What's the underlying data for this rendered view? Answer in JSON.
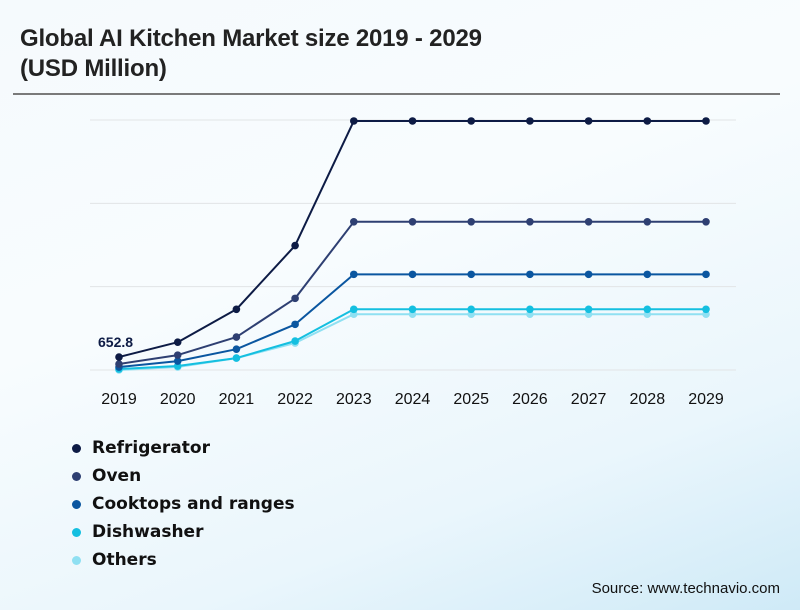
{
  "title_line1": "Global AI Kitchen Market size 2019 - 2029",
  "title_line2": "(USD Million)",
  "source": "Source: www.technavio.com",
  "chart_data": {
    "type": "line",
    "title": "Global AI Kitchen Market size 2019 - 2029 (USD Million)",
    "xlabel": "",
    "ylabel": "USD Million",
    "x": [
      "2019",
      "2020",
      "2021",
      "2022",
      "2023",
      "2024",
      "2025",
      "2026",
      "2027",
      "2028",
      "2029"
    ],
    "ylim": [
      0,
      12600
    ],
    "gridlines": [
      0,
      4200,
      8400,
      12600
    ],
    "grid": true,
    "y_tick_labels_visible": false,
    "legend_position": "bottom-left",
    "annotations": [
      {
        "series": "Refrigerator",
        "x": "2019",
        "text": "652.8"
      }
    ],
    "series": [
      {
        "name": "Refrigerator",
        "color": "#0d1b45",
        "values": [
          652.8,
          1400,
          3060,
          6270,
          12550,
          12550,
          12550,
          12550,
          12550,
          12550,
          12550
        ]
      },
      {
        "name": "Oven",
        "color": "#2e3f72",
        "values": [
          300,
          750,
          1660,
          3610,
          7470,
          7470,
          7470,
          7470,
          7470,
          7470,
          7470
        ]
      },
      {
        "name": "Cooktops and ranges",
        "color": "#0a56a0",
        "values": [
          150,
          450,
          1050,
          2300,
          4820,
          4820,
          4820,
          4820,
          4820,
          4820,
          4820
        ]
      },
      {
        "name": "Dishwasher",
        "color": "#14bfe0",
        "values": [
          50,
          200,
          600,
          1460,
          3060,
          3060,
          3060,
          3060,
          3060,
          3060,
          3060
        ]
      },
      {
        "name": "Others",
        "color": "#8fe0f2",
        "values": [
          0,
          150,
          600,
          1360,
          2810,
          2810,
          2810,
          2810,
          2810,
          2810,
          2810
        ]
      }
    ]
  }
}
